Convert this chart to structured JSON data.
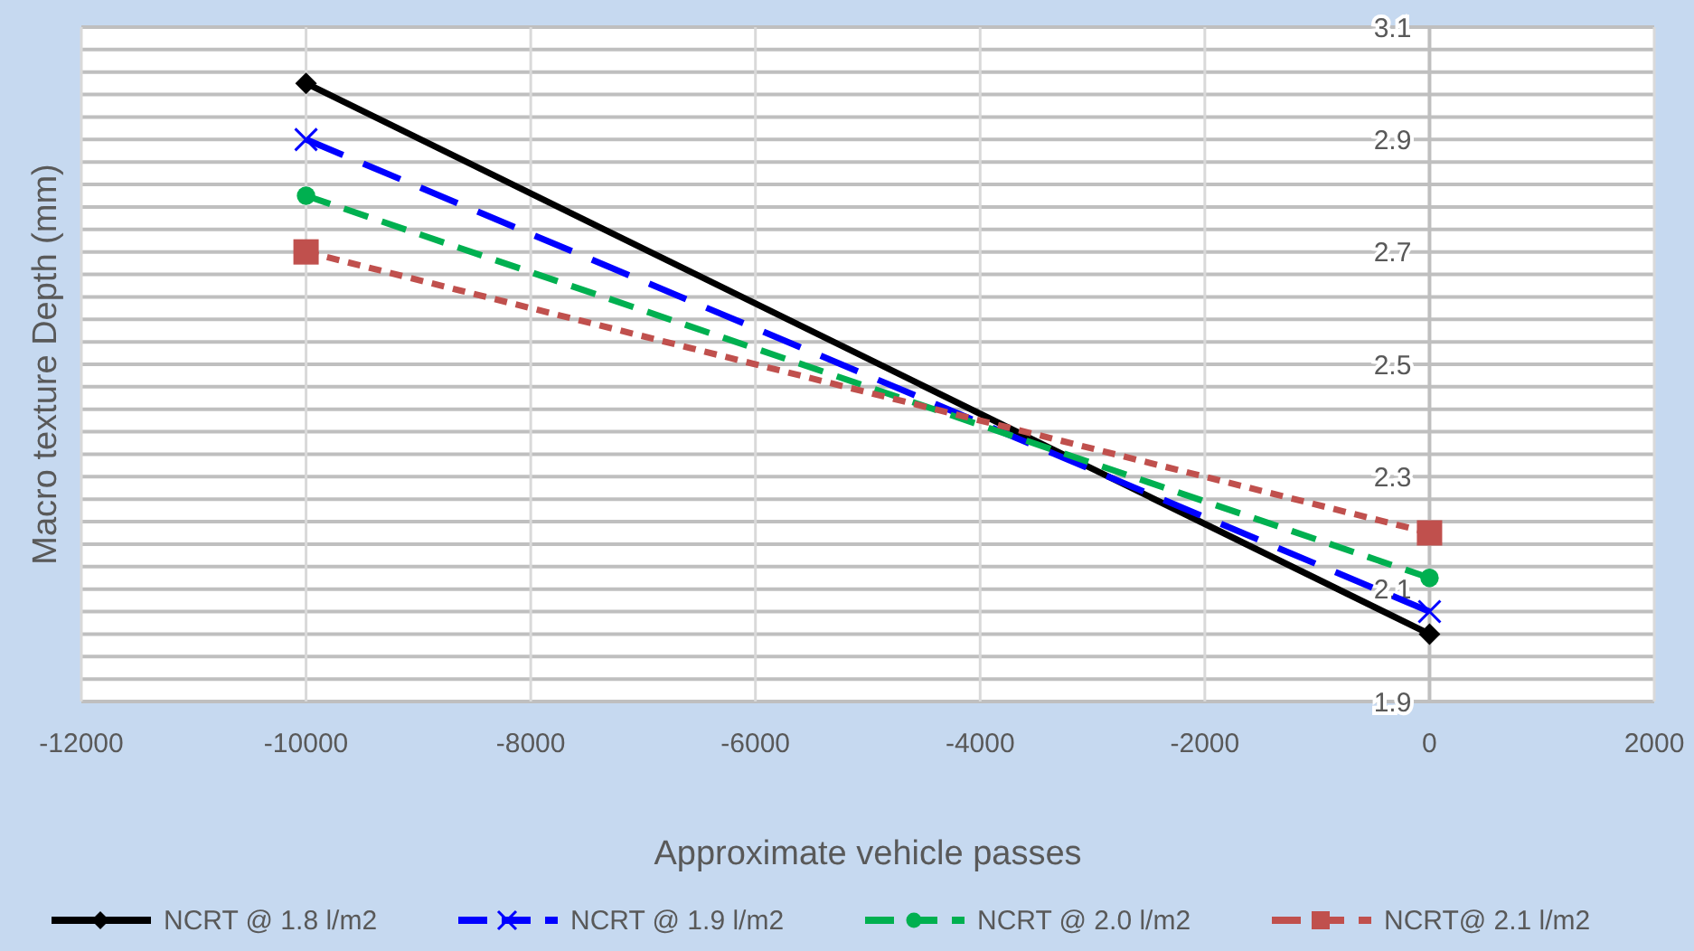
{
  "chart_data": {
    "type": "line",
    "xlabel": "Approximate vehicle passes",
    "ylabel": "Macro texture Depth (mm)",
    "xlim": [
      -12000,
      2000
    ],
    "xticks": [
      -12000,
      -10000,
      -8000,
      -6000,
      -4000,
      -2000,
      0,
      2000
    ],
    "ylim": [
      1.9,
      3.1
    ],
    "yticks": [
      1.9,
      {
        "value": 1.94,
        "label": null
      },
      {
        "value": 1.98,
        "label": null
      },
      {
        "value": 2.02,
        "label": null
      },
      {
        "value": 2.06,
        "label": null
      },
      2.1,
      {
        "value": 2.14,
        "label": null
      },
      {
        "value": 2.18,
        "label": null
      },
      {
        "value": 2.22,
        "label": null
      },
      {
        "value": 2.26,
        "label": null
      },
      2.3,
      {
        "value": 2.34,
        "label": null
      },
      {
        "value": 2.38,
        "label": null
      },
      {
        "value": 2.42,
        "label": null
      },
      {
        "value": 2.46,
        "label": null
      },
      2.5,
      {
        "value": 2.54,
        "label": null
      },
      {
        "value": 2.58,
        "label": null
      },
      {
        "value": 2.62,
        "label": null
      },
      {
        "value": 2.66,
        "label": null
      },
      2.7,
      {
        "value": 2.74,
        "label": null
      },
      {
        "value": 2.78,
        "label": null
      },
      {
        "value": 2.82,
        "label": null
      },
      {
        "value": 2.86,
        "label": null
      },
      2.9,
      {
        "value": 2.94,
        "label": null
      },
      {
        "value": 2.98,
        "label": null
      },
      {
        "value": 3.02,
        "label": null
      },
      {
        "value": 3.06,
        "label": null
      },
      3.1
    ],
    "x": [
      -10000,
      0
    ],
    "grid": true,
    "legend": "bottom",
    "series": [
      {
        "name": "NCRT @ 1.8 l/m2",
        "color": "#000000",
        "marker": "diamond",
        "line_style": "solid",
        "values": [
          3.0,
          2.02
        ]
      },
      {
        "name": "NCRT @ 1.9 l/m2",
        "color": "#0000ff",
        "marker": "cross",
        "line_style": "dashed",
        "values": [
          2.9,
          2.06
        ]
      },
      {
        "name": "NCRT @ 2.0 l/m2",
        "color": "#00b050",
        "marker": "circle",
        "line_style": "dashed",
        "values": [
          2.8,
          2.12
        ]
      },
      {
        "name": "NCRT@ 2.1 l/m2",
        "color": "#c0504d",
        "marker": "square",
        "line_style": "dotted",
        "values": [
          2.7,
          2.2
        ]
      }
    ]
  }
}
